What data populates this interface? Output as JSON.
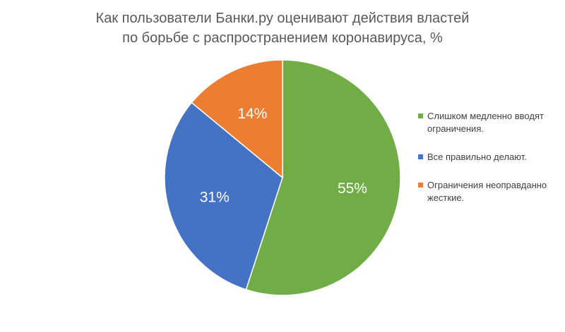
{
  "chart_data": {
    "type": "pie",
    "title_lines": [
      "Как пользователи Банки.ру оценивают действия властей",
      "по борьбе с распространением коронавируса, %"
    ],
    "slices": [
      {
        "name": "Слишком медленно вводят ограничения.",
        "value": 55,
        "label": "55%",
        "color": "#70AD47"
      },
      {
        "name": "Все правильно делают.",
        "value": 31,
        "label": "31%",
        "color": "#4472C4"
      },
      {
        "name": "Ограничения неоправданно жесткие.",
        "value": 14,
        "label": "14%",
        "color": "#ED7D31"
      }
    ],
    "legend_position": "right"
  }
}
